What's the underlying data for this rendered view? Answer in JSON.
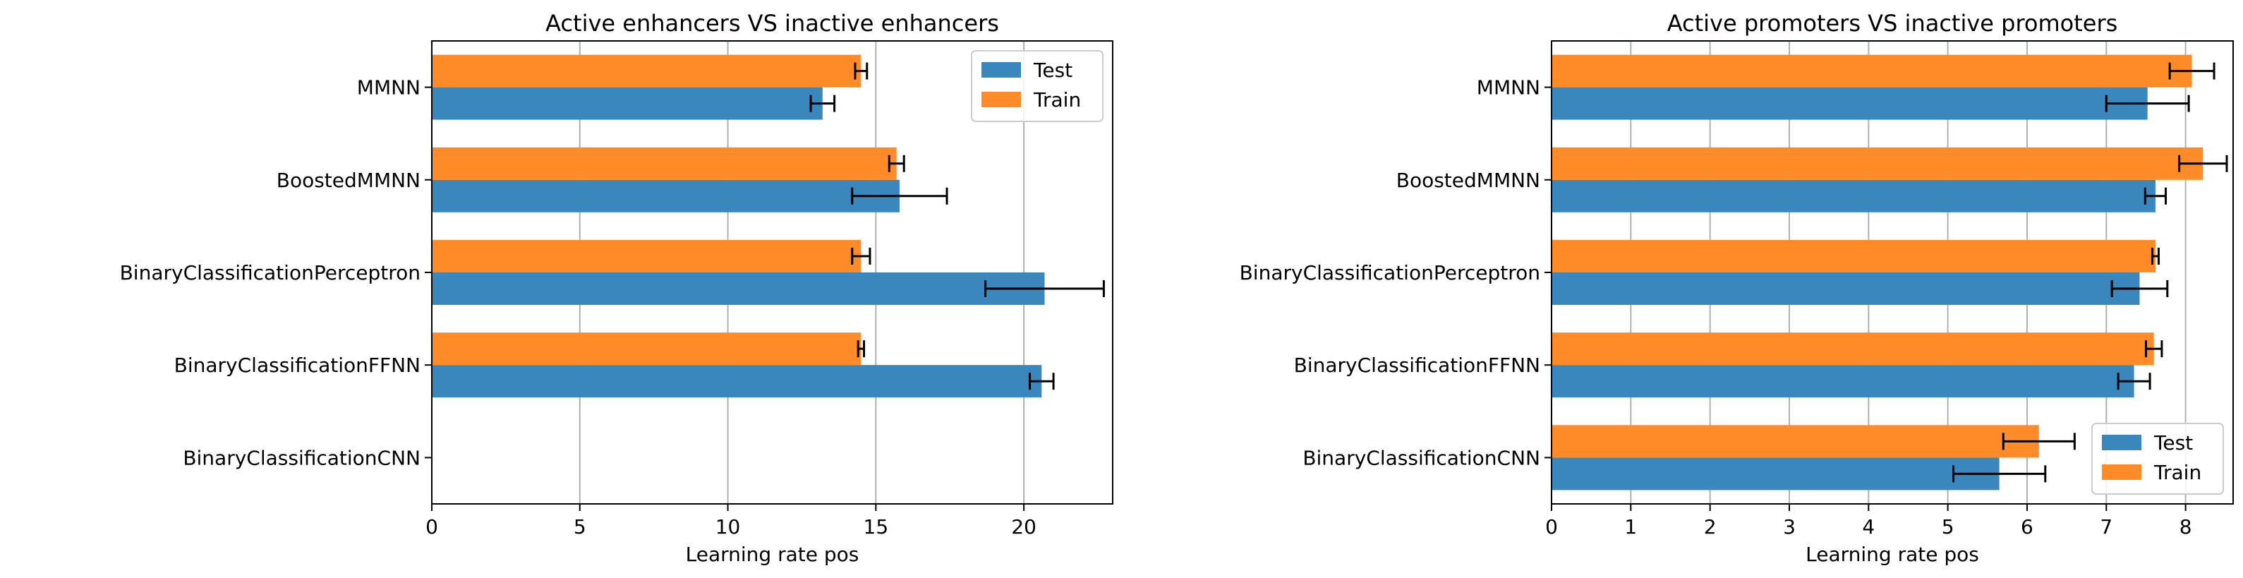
{
  "chart_data": [
    {
      "type": "bar",
      "orientation": "horizontal",
      "title": "Active enhancers VS inactive enhancers",
      "xlabel": "Learning rate pos",
      "ylabel": "",
      "xlim": [
        0,
        23
      ],
      "xticks": [
        0,
        5,
        10,
        15,
        20
      ],
      "grid": "x",
      "legend_position": "upper right",
      "categories": [
        "MMNN",
        "BoostedMMNN",
        "BinaryClassificationPerceptron",
        "BinaryClassificationFFNN",
        "BinaryClassificationCNN"
      ],
      "series": [
        {
          "name": "Test",
          "color": "#3a87be",
          "values": [
            13.2,
            15.8,
            20.7,
            20.6,
            null
          ],
          "errors": [
            0.4,
            1.6,
            2.0,
            0.4,
            null
          ]
        },
        {
          "name": "Train",
          "color": "#ff8c28",
          "values": [
            14.5,
            15.7,
            14.5,
            14.5,
            null
          ],
          "errors": [
            0.2,
            0.25,
            0.3,
            0.1,
            null
          ]
        }
      ]
    },
    {
      "type": "bar",
      "orientation": "horizontal",
      "title": "Active promoters VS inactive promoters",
      "xlabel": "Learning rate pos",
      "ylabel": "",
      "xlim": [
        0,
        8.6
      ],
      "xticks": [
        0,
        1,
        2,
        3,
        4,
        5,
        6,
        7,
        8
      ],
      "grid": "x",
      "legend_position": "lower right",
      "categories": [
        "MMNN",
        "BoostedMMNN",
        "BinaryClassificationPerceptron",
        "BinaryClassificationFFNN",
        "BinaryClassificationCNN"
      ],
      "series": [
        {
          "name": "Test",
          "color": "#3a87be",
          "values": [
            7.52,
            7.62,
            7.42,
            7.35,
            5.65
          ],
          "errors": [
            0.52,
            0.13,
            0.35,
            0.2,
            0.58
          ]
        },
        {
          "name": "Train",
          "color": "#ff8c28",
          "values": [
            8.08,
            8.22,
            7.62,
            7.6,
            6.15
          ],
          "errors": [
            0.28,
            0.3,
            0.04,
            0.1,
            0.45
          ]
        }
      ]
    }
  ]
}
